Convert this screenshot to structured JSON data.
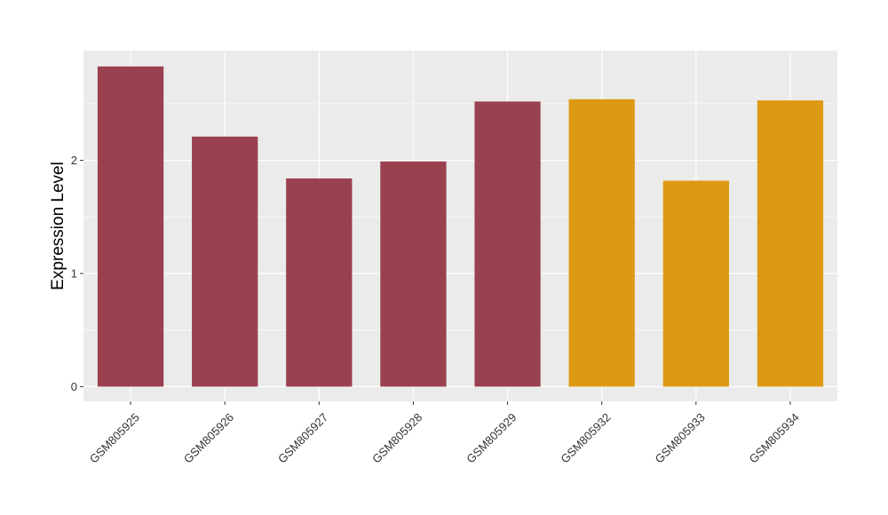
{
  "chart_data": {
    "type": "bar",
    "title": "",
    "xlabel": "",
    "ylabel": "Expression Level",
    "categories": [
      "GSM805925",
      "GSM805926",
      "GSM805927",
      "GSM805928",
      "GSM805929",
      "GSM805932",
      "GSM805933",
      "GSM805934"
    ],
    "values": [
      2.83,
      2.21,
      1.84,
      1.99,
      2.52,
      2.54,
      1.82,
      2.53
    ],
    "bar_colors": [
      "#9a414f",
      "#9a414f",
      "#9a414f",
      "#9a414f",
      "#9a414f",
      "#dd9913",
      "#dd9913",
      "#dd9913"
    ],
    "y_ticks": [
      0,
      1,
      2
    ],
    "ylim": [
      -0.13,
      2.97
    ],
    "grid": true,
    "legend": "none",
    "panel_background": "#ebebeb",
    "gridline_color": "#ffffff"
  }
}
